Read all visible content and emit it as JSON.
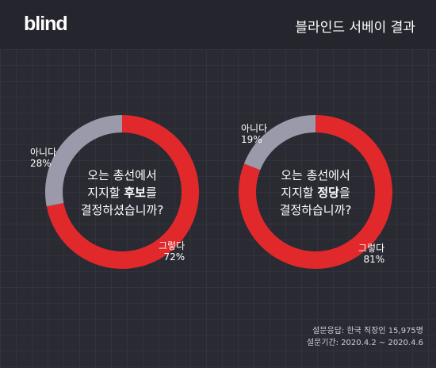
{
  "header": {
    "logo": "blind",
    "title": "블라인드 서베이 결과"
  },
  "chart_data": [
    {
      "type": "pie",
      "question": {
        "line1": "오는 총선에서",
        "line2_prefix": "지지할 ",
        "line2_emphasis": "후보",
        "line2_suffix": "를",
        "line3": "결정하셨습니까?"
      },
      "slices": [
        {
          "label": "그렇다",
          "value": 72,
          "display": "72%",
          "color": "#e1292c"
        },
        {
          "label": "아니다",
          "value": 28,
          "display": "28%",
          "color": "#9a9aab"
        }
      ]
    },
    {
      "type": "pie",
      "question": {
        "line1": "오는 총선에서",
        "line2_prefix": "지지할 ",
        "line2_emphasis": "정당",
        "line2_suffix": "을",
        "line3": "결정하습니까?"
      },
      "slices": [
        {
          "label": "그렇다",
          "value": 81,
          "display": "81%",
          "color": "#e1292c"
        },
        {
          "label": "아니다",
          "value": 19,
          "display": "19%",
          "color": "#9a9aab"
        }
      ]
    }
  ],
  "footer": {
    "respondents": "설문응답: 한국 직장인 15,975명",
    "period": "설문기간: 2020.4.2 ~ 2020.4.6"
  }
}
